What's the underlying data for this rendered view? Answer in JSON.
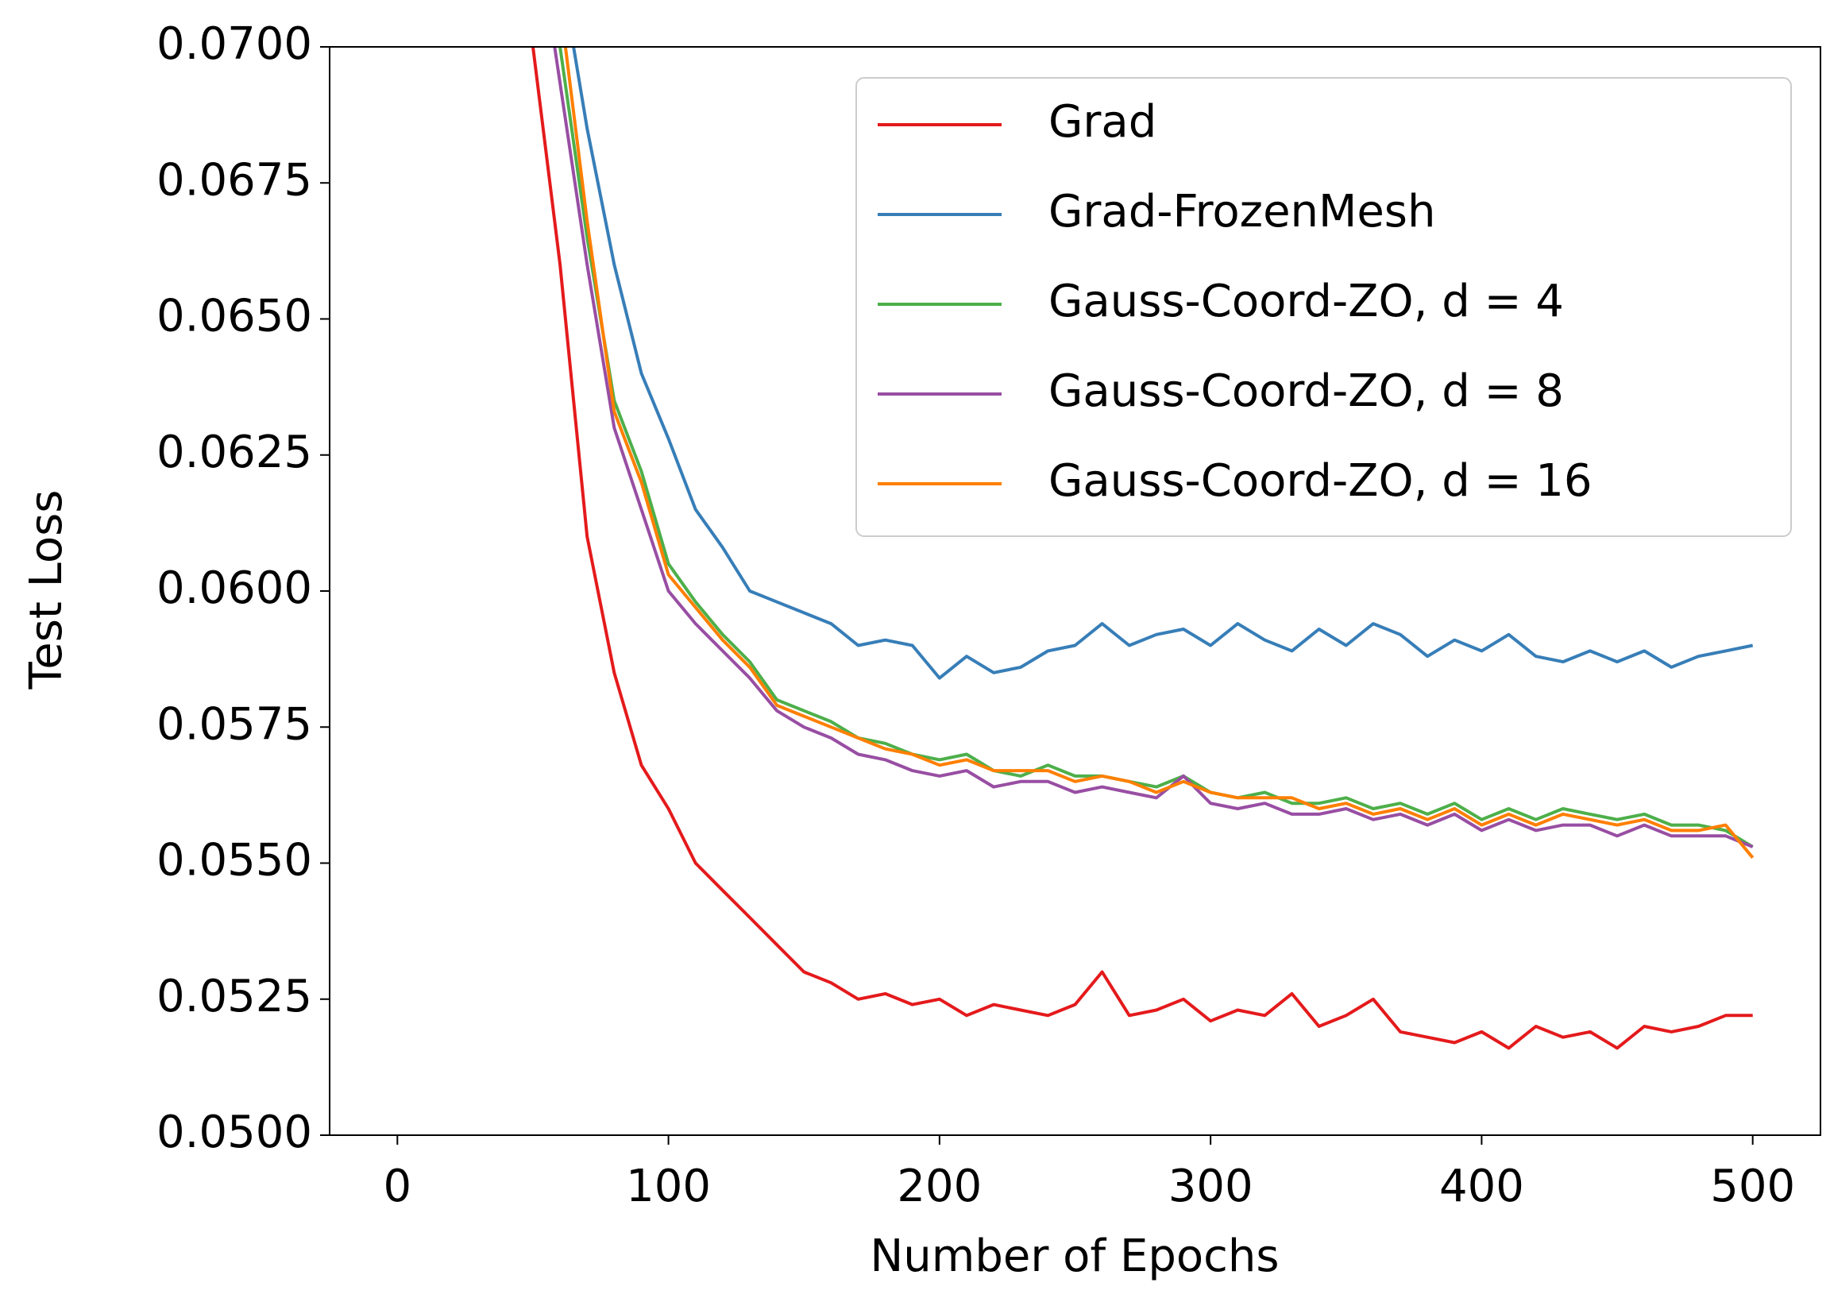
{
  "chart_data": {
    "type": "line",
    "xlabel": "Number of Epochs",
    "ylabel": "Test Loss",
    "xlim": [
      -25,
      525
    ],
    "xticks": [
      0,
      100,
      200,
      300,
      400,
      500
    ],
    "ylim": [
      0.05,
      0.07
    ],
    "yticks": [
      {
        "value": 0.05,
        "label": "0.0500"
      },
      {
        "value": 0.0525,
        "label": "0.0525"
      },
      {
        "value": 0.055,
        "label": "0.0550"
      },
      {
        "value": 0.0575,
        "label": "0.0575"
      },
      {
        "value": 0.06,
        "label": "0.0600"
      },
      {
        "value": 0.0625,
        "label": "0.0625"
      },
      {
        "value": 0.065,
        "label": "0.0650"
      },
      {
        "value": 0.0675,
        "label": "0.0675"
      },
      {
        "value": 0.07,
        "label": "0.0700"
      }
    ],
    "grid": false,
    "legend": "upper right",
    "series": [
      {
        "name": "Grad",
        "color": "#e41a1c",
        "x": [
          50,
          60,
          70,
          80,
          90,
          100,
          110,
          120,
          130,
          140,
          150,
          160,
          170,
          180,
          190,
          200,
          210,
          220,
          230,
          240,
          250,
          260,
          270,
          280,
          290,
          300,
          310,
          320,
          330,
          340,
          350,
          360,
          370,
          380,
          390,
          400,
          410,
          420,
          430,
          440,
          450,
          460,
          470,
          480,
          490,
          500
        ],
        "values": [
          0.07,
          0.066,
          0.061,
          0.0585,
          0.0568,
          0.056,
          0.055,
          0.0545,
          0.054,
          0.0535,
          0.053,
          0.0528,
          0.0525,
          0.0526,
          0.0524,
          0.0525,
          0.0522,
          0.0524,
          0.0523,
          0.0522,
          0.0524,
          0.053,
          0.0522,
          0.0523,
          0.0525,
          0.0521,
          0.0523,
          0.0522,
          0.0526,
          0.052,
          0.0522,
          0.0525,
          0.0519,
          0.0518,
          0.0517,
          0.0519,
          0.0516,
          0.052,
          0.0518,
          0.0519,
          0.0516,
          0.052,
          0.0519,
          0.052,
          0.0522,
          0.0522
        ]
      },
      {
        "name": "Grad-FrozenMesh",
        "color": "#377eb8",
        "x": [
          65,
          70,
          80,
          90,
          100,
          110,
          120,
          130,
          140,
          150,
          160,
          170,
          180,
          190,
          200,
          210,
          220,
          230,
          240,
          250,
          260,
          270,
          280,
          290,
          300,
          310,
          320,
          330,
          340,
          350,
          360,
          370,
          380,
          390,
          400,
          410,
          420,
          430,
          440,
          450,
          460,
          470,
          480,
          490,
          500
        ],
        "values": [
          0.07,
          0.0685,
          0.066,
          0.064,
          0.0628,
          0.0615,
          0.0608,
          0.06,
          0.0598,
          0.0596,
          0.0594,
          0.059,
          0.0591,
          0.059,
          0.0584,
          0.0588,
          0.0585,
          0.0586,
          0.0589,
          0.059,
          0.0594,
          0.059,
          0.0592,
          0.0593,
          0.059,
          0.0594,
          0.0591,
          0.0589,
          0.0593,
          0.059,
          0.0594,
          0.0592,
          0.0588,
          0.0591,
          0.0589,
          0.0592,
          0.0588,
          0.0587,
          0.0589,
          0.0587,
          0.0589,
          0.0586,
          0.0588,
          0.0589,
          0.059
        ]
      },
      {
        "name": "Gauss-Coord-ZO, d = 4",
        "color": "#4daf4a",
        "x": [
          60,
          70,
          80,
          90,
          100,
          110,
          120,
          130,
          140,
          150,
          160,
          170,
          180,
          190,
          200,
          210,
          220,
          230,
          240,
          250,
          260,
          270,
          280,
          290,
          300,
          310,
          320,
          330,
          340,
          350,
          360,
          370,
          380,
          390,
          400,
          410,
          420,
          430,
          440,
          450,
          460,
          470,
          480,
          490,
          500
        ],
        "values": [
          0.07,
          0.0665,
          0.0635,
          0.0622,
          0.0605,
          0.0598,
          0.0592,
          0.0587,
          0.058,
          0.0578,
          0.0576,
          0.0573,
          0.0572,
          0.057,
          0.0569,
          0.057,
          0.0567,
          0.0566,
          0.0568,
          0.0566,
          0.0566,
          0.0565,
          0.0564,
          0.0566,
          0.0563,
          0.0562,
          0.0563,
          0.0561,
          0.0561,
          0.0562,
          0.056,
          0.0561,
          0.0559,
          0.0561,
          0.0558,
          0.056,
          0.0558,
          0.056,
          0.0559,
          0.0558,
          0.0559,
          0.0557,
          0.0557,
          0.0556,
          0.0553
        ]
      },
      {
        "name": "Gauss-Coord-ZO, d = 8",
        "color": "#984ea3",
        "x": [
          58,
          70,
          80,
          90,
          100,
          110,
          120,
          130,
          140,
          150,
          160,
          170,
          180,
          190,
          200,
          210,
          220,
          230,
          240,
          250,
          260,
          270,
          280,
          290,
          300,
          310,
          320,
          330,
          340,
          350,
          360,
          370,
          380,
          390,
          400,
          410,
          420,
          430,
          440,
          450,
          460,
          470,
          480,
          490,
          500
        ],
        "values": [
          0.07,
          0.066,
          0.063,
          0.0615,
          0.06,
          0.0594,
          0.0589,
          0.0584,
          0.0578,
          0.0575,
          0.0573,
          0.057,
          0.0569,
          0.0567,
          0.0566,
          0.0567,
          0.0564,
          0.0565,
          0.0565,
          0.0563,
          0.0564,
          0.0563,
          0.0562,
          0.0566,
          0.0561,
          0.056,
          0.0561,
          0.0559,
          0.0559,
          0.056,
          0.0558,
          0.0559,
          0.0557,
          0.0559,
          0.0556,
          0.0558,
          0.0556,
          0.0557,
          0.0557,
          0.0555,
          0.0557,
          0.0555,
          0.0555,
          0.0555,
          0.0553
        ]
      },
      {
        "name": "Gauss-Coord-ZO, d = 16",
        "color": "#ff7f00",
        "x": [
          62,
          70,
          80,
          90,
          100,
          110,
          120,
          130,
          140,
          150,
          160,
          170,
          180,
          190,
          200,
          210,
          220,
          230,
          240,
          250,
          260,
          270,
          280,
          290,
          300,
          310,
          320,
          330,
          340,
          350,
          360,
          370,
          380,
          390,
          400,
          410,
          420,
          430,
          440,
          450,
          460,
          470,
          480,
          490,
          500
        ],
        "values": [
          0.07,
          0.0668,
          0.0633,
          0.062,
          0.0603,
          0.0597,
          0.0591,
          0.0586,
          0.0579,
          0.0577,
          0.0575,
          0.0573,
          0.0571,
          0.057,
          0.0568,
          0.0569,
          0.0567,
          0.0567,
          0.0567,
          0.0565,
          0.0566,
          0.0565,
          0.0563,
          0.0565,
          0.0563,
          0.0562,
          0.0562,
          0.0562,
          0.056,
          0.0561,
          0.0559,
          0.056,
          0.0558,
          0.056,
          0.0557,
          0.0559,
          0.0557,
          0.0559,
          0.0558,
          0.0557,
          0.0558,
          0.0556,
          0.0556,
          0.0557,
          0.0551
        ]
      }
    ]
  }
}
